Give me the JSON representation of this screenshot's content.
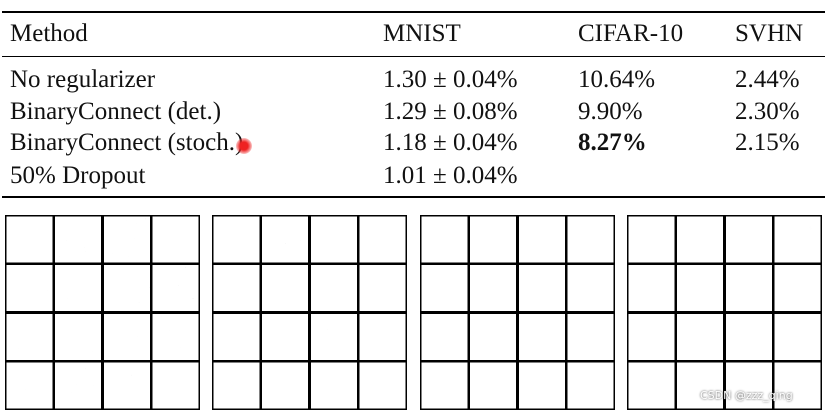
{
  "table": {
    "header": [
      "Method",
      "MNIST",
      "CIFAR-10",
      "SVHN"
    ],
    "rows": [
      [
        "No regularizer",
        "1.30 ± 0.04%",
        "10.64%",
        "2.44%"
      ],
      [
        "BinaryConnect (det.)",
        "1.29 ± 0.08%",
        "9.90%",
        "2.30%"
      ],
      [
        "BinaryConnect (stoch.)",
        "1.18 ± 0.04%",
        "8.27%",
        "2.15%"
      ],
      [
        "50% Dropout",
        "1.01 ± 0.04%"
      ]
    ]
  },
  "watermark": "CSDN @zzz_qing"
}
